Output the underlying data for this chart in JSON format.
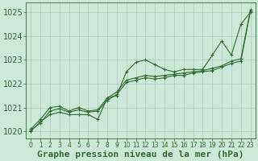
{
  "background_color": "#cce8d8",
  "grid_color": "#aaccbb",
  "line_color": "#2d6e2d",
  "marker_color": "#2d6e2d",
  "xlim": [
    -0.5,
    23.5
  ],
  "ylim": [
    1019.7,
    1025.4
  ],
  "yticks": [
    1020,
    1021,
    1022,
    1023,
    1024,
    1025
  ],
  "xticks": [
    0,
    1,
    2,
    3,
    4,
    5,
    6,
    7,
    8,
    9,
    10,
    11,
    12,
    13,
    14,
    15,
    16,
    17,
    18,
    19,
    20,
    21,
    22,
    23
  ],
  "series1": [
    1020.0,
    1020.4,
    1020.7,
    1020.8,
    1020.7,
    1020.7,
    1020.7,
    1020.5,
    1021.4,
    1021.5,
    1022.5,
    1022.9,
    1023.0,
    1022.8,
    1022.6,
    1022.5,
    1022.6,
    1022.6,
    1022.6,
    1023.2,
    1023.8,
    1023.2,
    1024.5,
    1025.0
  ],
  "series2": [
    1020.1,
    1020.5,
    1021.0,
    1021.05,
    1020.85,
    1021.0,
    1020.85,
    1020.9,
    1021.4,
    1021.65,
    1022.15,
    1022.25,
    1022.35,
    1022.3,
    1022.35,
    1022.4,
    1022.45,
    1022.5,
    1022.55,
    1022.65,
    1022.75,
    1022.95,
    1023.05,
    1025.1
  ],
  "series3": [
    1020.05,
    1020.35,
    1020.85,
    1020.95,
    1020.8,
    1020.9,
    1020.8,
    1020.85,
    1021.3,
    1021.55,
    1022.05,
    1022.15,
    1022.25,
    1022.2,
    1022.25,
    1022.35,
    1022.35,
    1022.45,
    1022.5,
    1022.55,
    1022.7,
    1022.85,
    1022.95,
    1025.05
  ],
  "xlabel": "Graphe pression niveau de la mer (hPa)",
  "xlabel_fontsize": 8,
  "tick_fontsize": 6.5,
  "ytick_fontsize": 7
}
